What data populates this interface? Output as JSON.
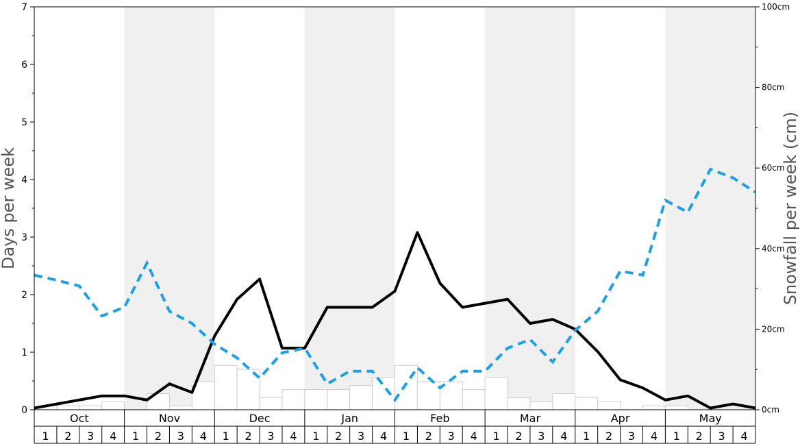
{
  "chart_data": {
    "type": "bar",
    "months": [
      "Oct",
      "Nov",
      "Dec",
      "Jan",
      "Feb",
      "Mar",
      "Apr",
      "May"
    ],
    "week_labels": [
      "1",
      "2",
      "3",
      "4"
    ],
    "y_left": {
      "label": "Days per week",
      "lim": [
        0,
        7
      ],
      "ticks": [
        "0",
        "1",
        "2",
        "3",
        "4",
        "5",
        "6",
        "7"
      ]
    },
    "y_right": {
      "label": "Snowfall per week (cm)",
      "lim": [
        0,
        100
      ],
      "ticks": [
        "0cm",
        "20cm",
        "40cm",
        "60cm",
        "80cm",
        "100cm"
      ]
    },
    "series": [
      {
        "type": "bar",
        "axis": "right",
        "color": "#cccccc",
        "values": [
          0,
          1,
          1,
          2,
          0,
          4,
          1,
          7,
          11,
          10,
          3,
          5,
          5,
          5,
          6,
          8,
          11,
          7,
          7,
          5,
          8,
          3,
          2,
          4,
          3,
          2,
          0,
          1,
          1,
          0,
          0,
          0
        ]
      },
      {
        "type": "line",
        "axis": "left",
        "color": "#000000",
        "style": "solid",
        "values": [
          0.03,
          0.1,
          0.17,
          0.24,
          0.24,
          0.17,
          0.45,
          0.3,
          1.28,
          1.92,
          2.27,
          1.07,
          1.07,
          1.78,
          1.78,
          1.78,
          2.06,
          3.08,
          2.2,
          1.78,
          1.85,
          1.92,
          1.5,
          1.57,
          1.4,
          1.01,
          0.52,
          0.38,
          0.17,
          0.24,
          0.03,
          0.1,
          0.03
        ]
      },
      {
        "type": "line",
        "axis": "left",
        "color": "#1aa0e6",
        "style": "dashed",
        "values": [
          2.34,
          2.25,
          2.15,
          1.63,
          1.78,
          2.55,
          1.71,
          1.5,
          1.14,
          0.9,
          0.55,
          0.99,
          1.07,
          0.45,
          0.67,
          0.67,
          0.17,
          0.73,
          0.38,
          0.67,
          0.67,
          1.07,
          1.22,
          0.83,
          1.38,
          1.71,
          2.41,
          2.34,
          3.64,
          3.43,
          4.18,
          4.03,
          3.78
        ]
      }
    ]
  }
}
